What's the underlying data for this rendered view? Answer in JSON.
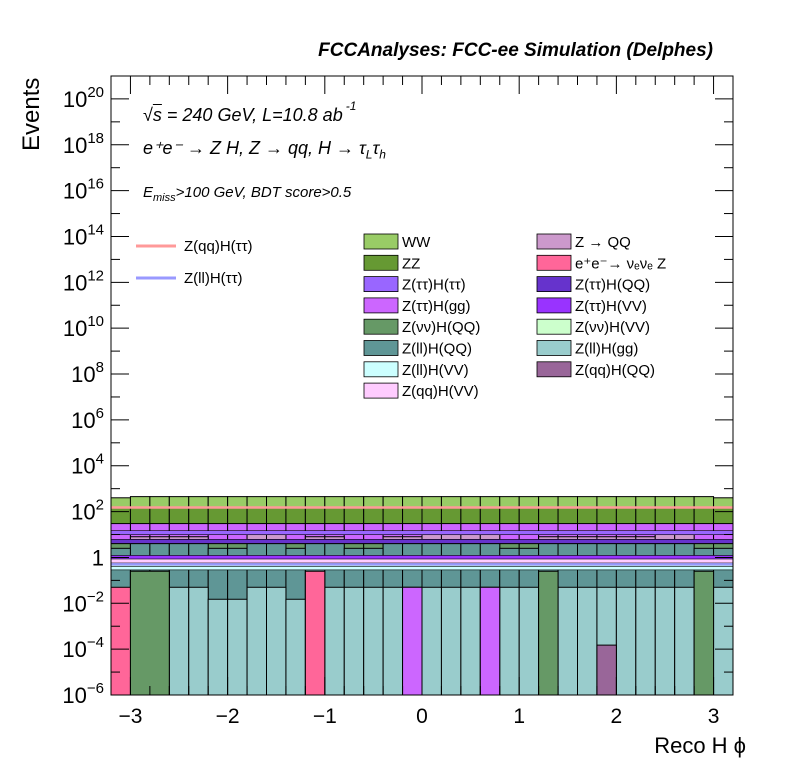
{
  "header": "FCCAnalyses: FCC-ee Simulation (Delphes)",
  "annotations": {
    "line1_prefix": "s",
    "line1_rest": " = 240 GeV, L=10.8 ab",
    "line1_sup": "-1",
    "line2": "e⁺e⁻ → Z H, Z → qq, H → τ",
    "line2_sub1": "L",
    "line2_mid": "τ",
    "line2_sub2": "h",
    "line3_a": "E",
    "line3_sub": "miss",
    "line3_b": ">100 GeV, BDT score>0.5"
  },
  "chart_data": {
    "type": "bar",
    "stacked": true,
    "xlabel": "Reco H ϕ",
    "ylabel": "Events",
    "xlim": [
      -3.2,
      3.2
    ],
    "ylim": [
      1e-06,
      1e+21
    ],
    "yscale": "log",
    "xticks": [
      -3,
      -2,
      -1,
      0,
      1,
      2,
      3
    ],
    "xtick_labels": [
      "−3",
      "−2",
      "−1",
      "0",
      "1",
      "2",
      "3"
    ],
    "yticks": [
      1e-06,
      0.0001,
      0.01,
      1,
      100.0,
      10000.0,
      1000000.0,
      100000000.0,
      10000000000.0,
      1000000000000.0,
      100000000000000.0,
      1e+16,
      1e+18,
      1e+20
    ],
    "ytick_labels": [
      {
        "base": "10",
        "exp": "−6"
      },
      {
        "base": "10",
        "exp": "−4"
      },
      {
        "base": "10",
        "exp": "−2"
      },
      {
        "base": "1",
        "exp": ""
      },
      {
        "base": "10",
        "exp": "2"
      },
      {
        "base": "10",
        "exp": "4"
      },
      {
        "base": "10",
        "exp": "6"
      },
      {
        "base": "10",
        "exp": "8"
      },
      {
        "base": "10",
        "exp": "10"
      },
      {
        "base": "10",
        "exp": "12"
      },
      {
        "base": "10",
        "exp": "14"
      },
      {
        "base": "10",
        "exp": "16"
      },
      {
        "base": "10",
        "exp": "18"
      },
      {
        "base": "10",
        "exp": "20"
      }
    ],
    "grid": false,
    "legend_placement": "center",
    "nbins": 32,
    "stack_tops": [
      {
        "name": "Z(ll)H(gg)",
        "color": "#99cccc",
        "values": [
          3e-06,
          0.25,
          0.25,
          0.05,
          0.05,
          0.015,
          0.015,
          0.05,
          0.05,
          0.015,
          0.015,
          0.05,
          0.05,
          0.05,
          0.05,
          0.05,
          0.05,
          0.05,
          0.05,
          0.05,
          0.05,
          0.05,
          0.05,
          0.05,
          0.05,
          0.05,
          0.05,
          0.05,
          0.05,
          0.05,
          0.05,
          0.05
        ]
      },
      {
        "name": "Z(ll)H(QQ)",
        "color": "#5f9696",
        "values": [
          2.5,
          4,
          4,
          4,
          4,
          2.5,
          2.5,
          4,
          4,
          2.5,
          4,
          4,
          2.5,
          2.5,
          4,
          4,
          4,
          4,
          4,
          4,
          2.5,
          2.5,
          4,
          4,
          4,
          4,
          4,
          4,
          4,
          4,
          2.5,
          2.5
        ]
      },
      {
        "name": "Z(vv)H(QQ)",
        "color": "#669966",
        "values": [
          4,
          6,
          6,
          6,
          6,
          4,
          4,
          6,
          6,
          4,
          6,
          6,
          4,
          4,
          6,
          6,
          6,
          6,
          6,
          6,
          4,
          4,
          6,
          6,
          6,
          6,
          6,
          6,
          6,
          6,
          4,
          4
        ]
      },
      {
        "name": "Z → QQ",
        "color": "#cc99cc",
        "values": [
          5,
          8,
          8,
          8,
          8,
          5,
          5,
          10,
          10,
          5,
          8,
          8,
          5,
          5,
          8,
          8,
          10,
          10,
          10,
          10,
          5,
          5,
          8,
          8,
          8,
          8,
          8,
          8,
          10,
          10,
          5,
          5
        ]
      },
      {
        "name": "Z(ττ)H(gg)",
        "color": "#cc66ff",
        "values": [
          30,
          30,
          30,
          30,
          30,
          30,
          30,
          30,
          30,
          30,
          30,
          30,
          30,
          30,
          30,
          30,
          30,
          30,
          30,
          30,
          30,
          30,
          30,
          30,
          30,
          30,
          30,
          30,
          30,
          30,
          30,
          30
        ]
      },
      {
        "name": "ZZ",
        "color": "#669933",
        "values": [
          150,
          150,
          150,
          150,
          150,
          150,
          150,
          150,
          150,
          150,
          150,
          150,
          150,
          150,
          150,
          150,
          150,
          150,
          150,
          150,
          150,
          150,
          150,
          150,
          150,
          150,
          150,
          150,
          150,
          150,
          150,
          150
        ]
      },
      {
        "name": "WW",
        "color": "#99cc66",
        "values": [
          400,
          450,
          450,
          450,
          450,
          450,
          450,
          450,
          450,
          450,
          450,
          450,
          450,
          450,
          450,
          450,
          450,
          450,
          450,
          450,
          450,
          450,
          450,
          450,
          450,
          450,
          450,
          450,
          450,
          450,
          450,
          400
        ]
      }
    ],
    "spikes": [
      {
        "name": "e⁺e⁻→ νₑνₑ Z",
        "color": "#ff6699",
        "x_from": -3.2,
        "x_to": -3.0,
        "value": 0.05
      },
      {
        "name": "Z(vv)H(QQ)",
        "color": "#669966",
        "x_from": -3.0,
        "x_to": -2.6,
        "value": 0.25
      },
      {
        "name": "e⁺e⁻→ νₑνₑ Z",
        "color": "#ff6699",
        "x_from": -1.2,
        "x_to": -1.0,
        "value": 0.25
      },
      {
        "name": "Z(ττ)H(gg)",
        "color": "#cc66ff",
        "x_from": -0.2,
        "x_to": 0.0,
        "value": 0.05
      },
      {
        "name": "Z(ττ)H(gg)",
        "color": "#cc66ff",
        "x_from": 0.6,
        "x_to": 0.8,
        "value": 0.05
      },
      {
        "name": "Z(vv)H(QQ)",
        "color": "#669966",
        "x_from": 1.2,
        "x_to": 1.4,
        "value": 0.25
      },
      {
        "name": "Z(qq)H(QQ)",
        "color": "#996699",
        "x_from": 1.8,
        "x_to": 2.0,
        "value": 0.00015
      },
      {
        "name": "Z(vv)H(QQ)",
        "color": "#669966",
        "x_from": 2.8,
        "x_to": 3.0,
        "value": 0.25
      }
    ],
    "thin_lines": [
      {
        "name": "Z(ττ)H(ττ)",
        "color": "#9966ff",
        "value": 12
      },
      {
        "name": "Z(ττ)H(QQ)",
        "color": "#6633cc",
        "value": 5
      },
      {
        "name": "Z(ττ)H(VV)",
        "color": "#9933ff",
        "value": 1
      },
      {
        "name": "Z(ll)H(VV)",
        "color": "#ccffff",
        "value": 0.35
      },
      {
        "name": "Z(vv)H(VV)",
        "color": "#ccffcc",
        "value": 0.5
      },
      {
        "name": "Z(qq)H(VV)",
        "color": "#ffccff",
        "value": 0.7
      }
    ],
    "signals": [
      {
        "name": "Z(qq)H(ττ)",
        "color": "#ff9999",
        "value": 150
      },
      {
        "name": "Z(ll)H(ττ)",
        "color": "#9999ff",
        "value": 0.5
      }
    ],
    "legend_lines": [
      {
        "label": "Z(qq)H(ττ)",
        "color": "#ff9999"
      },
      {
        "label": "Z(ll)H(ττ)",
        "color": "#9999ff"
      }
    ],
    "legend_col1": [
      {
        "label": "WW",
        "color": "#99cc66"
      },
      {
        "label": "ZZ",
        "color": "#669933"
      },
      {
        "label": "Z(ττ)H(ττ)",
        "color": "#9966ff"
      },
      {
        "label": "Z(ττ)H(gg)",
        "color": "#cc66ff"
      },
      {
        "label": "Z(νν)H(QQ)",
        "color": "#669966"
      },
      {
        "label": "Z(ll)H(QQ)",
        "color": "#5f9696"
      },
      {
        "label": "Z(ll)H(VV)",
        "color": "#ccffff"
      },
      {
        "label": "Z(qq)H(VV)",
        "color": "#ffccff"
      }
    ],
    "legend_col2": [
      {
        "label": "Z → QQ",
        "color": "#cc99cc"
      },
      {
        "label": "e⁺e⁻→ νₑνₑ Z",
        "color": "#ff6699"
      },
      {
        "label": "Z(ττ)H(QQ)",
        "color": "#6633cc"
      },
      {
        "label": "Z(ττ)H(VV)",
        "color": "#9933ff"
      },
      {
        "label": "Z(νν)H(VV)",
        "color": "#ccffcc"
      },
      {
        "label": "Z(ll)H(gg)",
        "color": "#99cccc"
      },
      {
        "label": "Z(qq)H(QQ)",
        "color": "#996699"
      }
    ]
  }
}
